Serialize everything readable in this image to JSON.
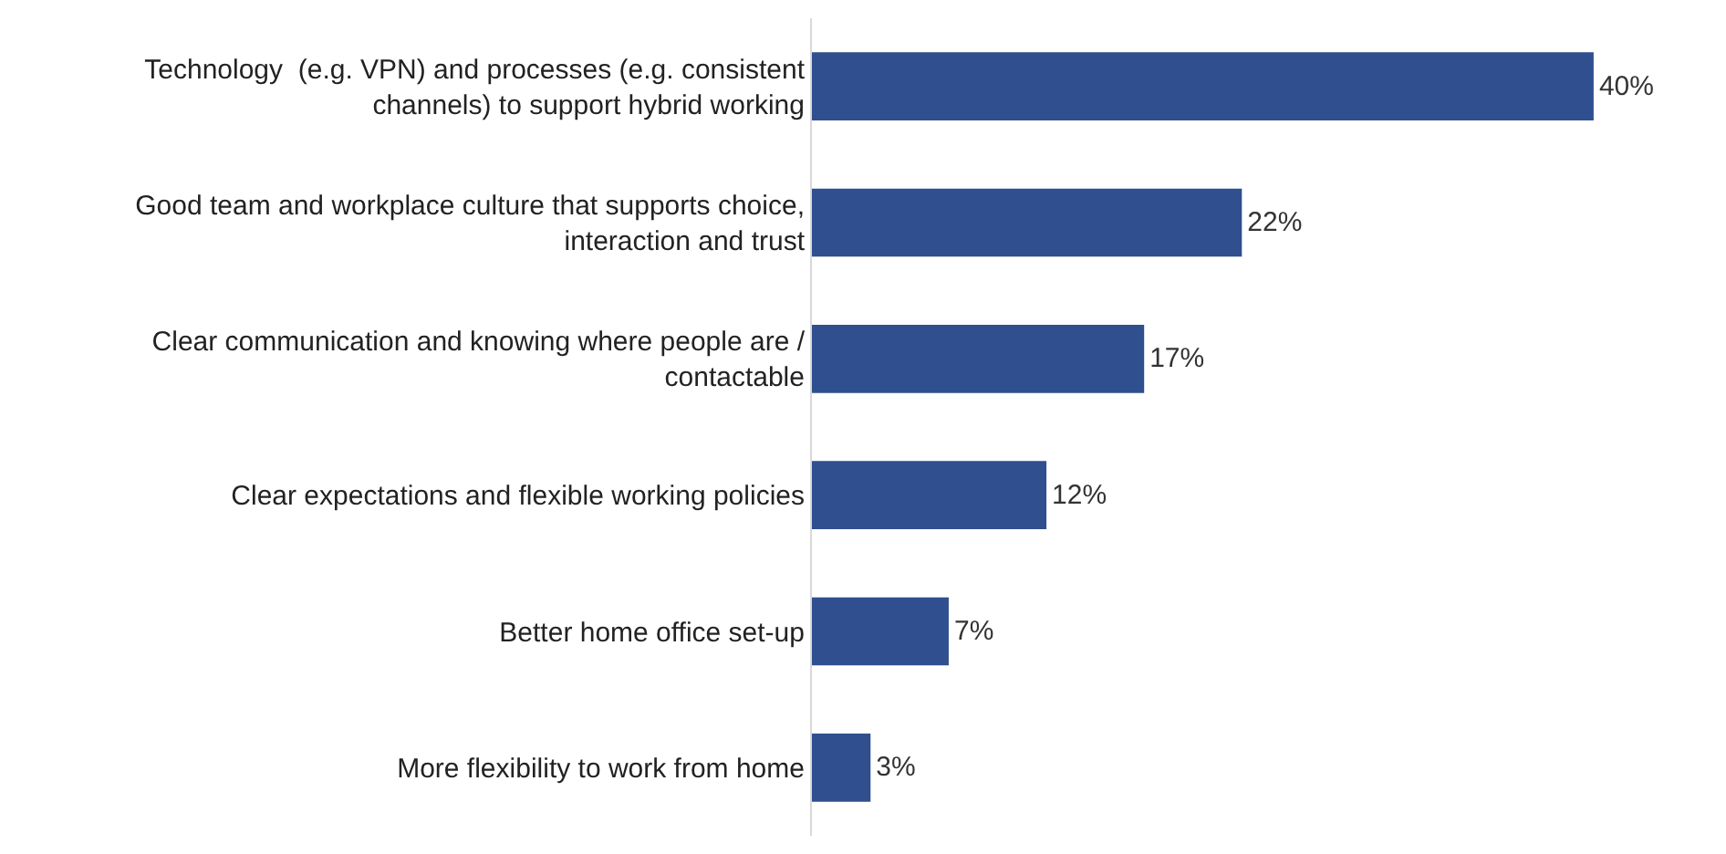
{
  "chart_data": {
    "type": "bar",
    "orientation": "horizontal",
    "categories": [
      "Technology  (e.g. VPN) and processes (e.g. consistent channels) to support hybrid working",
      "Good team and workplace culture that supports choice, interaction and trust",
      "Clear communication and knowing where people are / contactable",
      "Clear expectations and flexible working policies",
      "Better home office set-up",
      "More flexibility to work from home"
    ],
    "values": [
      40,
      22,
      17,
      12,
      7,
      3
    ],
    "value_labels": [
      "40%",
      "22%",
      "17%",
      "12%",
      "7%",
      "3%"
    ],
    "color": "#2f4f8f"
  }
}
